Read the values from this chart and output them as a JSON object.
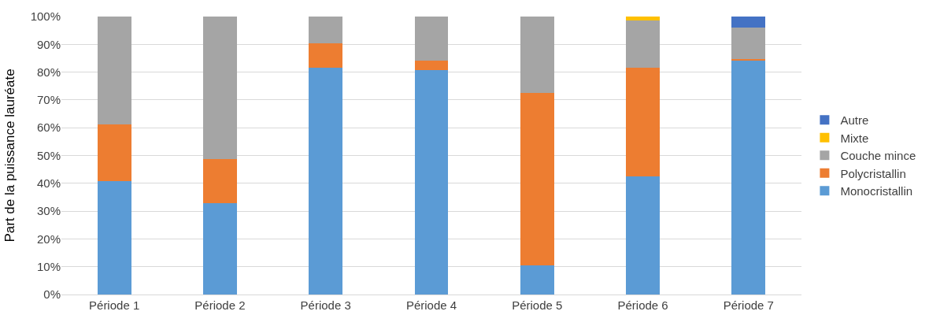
{
  "chart_data": {
    "type": "bar",
    "stacked": true,
    "ylabel": "Part de la puissance lauréate",
    "categories": [
      "Période 1",
      "Période 2",
      "Période 3",
      "Période 4",
      "Période 5",
      "Période 6",
      "Période 7"
    ],
    "series": [
      {
        "name": "Monocristallin",
        "color": "#5b9bd5",
        "values": [
          40.8,
          32.9,
          81.6,
          80.6,
          10.5,
          42.4,
          84.3
        ]
      },
      {
        "name": "Polycristallin",
        "color": "#ed7d31",
        "values": [
          20.3,
          15.8,
          8.7,
          3.6,
          62.1,
          39.2,
          0.4
        ]
      },
      {
        "name": "Couche mince",
        "color": "#a5a5a5",
        "values": [
          38.9,
          51.3,
          9.7,
          15.8,
          27.4,
          17.1,
          11.4
        ]
      },
      {
        "name": "Mixte",
        "color": "#ffc000",
        "values": [
          0,
          0,
          0,
          0,
          0,
          1.3,
          0
        ]
      },
      {
        "name": "Autre",
        "color": "#4472c4",
        "values": [
          0,
          0,
          0,
          0,
          0,
          0,
          3.9
        ]
      }
    ],
    "ylim": [
      0,
      100
    ],
    "yticks": [
      {
        "value": 0,
        "label": "0%"
      },
      {
        "value": 10,
        "label": "10%"
      },
      {
        "value": 20,
        "label": "20%"
      },
      {
        "value": 30,
        "label": "30%"
      },
      {
        "value": 40,
        "label": "40%"
      },
      {
        "value": 50,
        "label": "50%"
      },
      {
        "value": 60,
        "label": "60%"
      },
      {
        "value": 70,
        "label": "70%"
      },
      {
        "value": 80,
        "label": "80%"
      },
      {
        "value": 90,
        "label": "90%"
      },
      {
        "value": 100,
        "label": "100%"
      }
    ],
    "grid": "y",
    "legend": "right"
  }
}
